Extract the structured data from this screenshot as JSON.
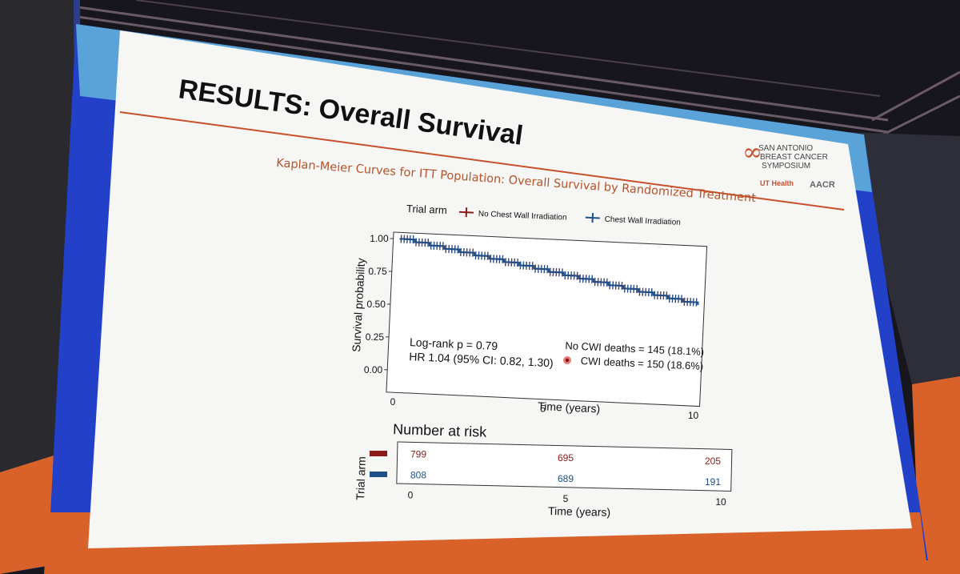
{
  "slide": {
    "title": "RESULTS: Overall Survival",
    "subtitle": "Kaplan-Meier Curves for ITT Population: Overall Survival by Randomized Treatment",
    "logo_line1": "SAN ANTONIO",
    "logo_line2": "BREAST CANCER",
    "logo_line3": "SYMPOSIUM",
    "logo_uthealth": "UT Health",
    "logo_aacr": "AACR"
  },
  "legend": {
    "title": "Trial arm",
    "arm1": "No Chest Wall Irradiation",
    "arm2": "Chest Wall Irradiation"
  },
  "annotations": {
    "logrank": "Log-rank p = 0.79",
    "hr": "HR 1.04 (95% CI: 0.82, 1.30)",
    "deaths_nocwi": "No CWI deaths = 145 (18.1%)",
    "deaths_cwi": "CWI deaths = 150 (18.6%)"
  },
  "risk_table": {
    "title": "Number at risk",
    "ylabel": "Trial arm",
    "xlabel": "Time (years)"
  },
  "colors": {
    "no_cwi": "#8b1a1a",
    "cwi": "#1f4f8a",
    "accent": "#b5532b",
    "frame_blue": "#2340c8"
  },
  "chart_data": [
    {
      "type": "line",
      "title": "Kaplan-Meier Curves for ITT Population: Overall Survival by Randomized Treatment",
      "xlabel": "Time (years)",
      "ylabel": "Survival probability",
      "xlim": [
        0,
        10
      ],
      "ylim": [
        0,
        1
      ],
      "x_ticks": [
        "0",
        "5",
        "10"
      ],
      "y_ticks": [
        "0.00",
        "0.25",
        "0.50",
        "0.75",
        "1.00"
      ],
      "legend": "top",
      "series": [
        {
          "name": "No Chest Wall Irradiation",
          "x": [
            0,
            0.5,
            1,
            1.5,
            2,
            2.5,
            3,
            3.5,
            4,
            4.5,
            5,
            5.5,
            6,
            6.5,
            7,
            7.5,
            8,
            8.5,
            9,
            9.5,
            10
          ],
          "y": [
            1.0,
            0.98,
            0.96,
            0.94,
            0.92,
            0.9,
            0.88,
            0.86,
            0.84,
            0.82,
            0.8,
            0.78,
            0.76,
            0.74,
            0.72,
            0.7,
            0.68,
            0.66,
            0.64,
            0.62,
            0.6
          ]
        },
        {
          "name": "Chest Wall Irradiation",
          "x": [
            0,
            0.5,
            1,
            1.5,
            2,
            2.5,
            3,
            3.5,
            4,
            4.5,
            5,
            5.5,
            6,
            6.5,
            7,
            7.5,
            8,
            8.5,
            9,
            9.5,
            10
          ],
          "y": [
            1.0,
            0.98,
            0.96,
            0.94,
            0.92,
            0.9,
            0.88,
            0.86,
            0.84,
            0.82,
            0.8,
            0.78,
            0.76,
            0.74,
            0.72,
            0.7,
            0.68,
            0.66,
            0.64,
            0.62,
            0.6
          ]
        }
      ]
    },
    {
      "type": "table",
      "title": "Number at risk",
      "xlabel": "Time (years)",
      "ylabel": "Trial arm",
      "x_ticks": [
        "0",
        "5",
        "10"
      ],
      "times": [
        0,
        5,
        10
      ],
      "rows": [
        {
          "arm": "No Chest Wall Irradiation",
          "values": [
            "799",
            "695",
            "205"
          ]
        },
        {
          "arm": "Chest Wall Irradiation",
          "values": [
            "808",
            "689",
            "191"
          ]
        }
      ]
    }
  ]
}
